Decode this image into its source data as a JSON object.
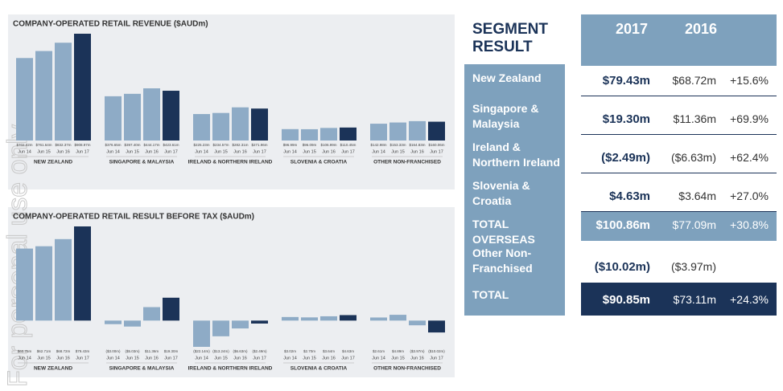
{
  "chart_data": [
    {
      "type": "bar",
      "title": "COMPANY-OPERATED RETAIL REVENUE ($AUDm)",
      "periods": [
        "Jun 14",
        "Jun 15",
        "Jun 16",
        "Jun 17"
      ],
      "colors": [
        "#8eabc6",
        "#8eabc6",
        "#8eabc6",
        "#1b3358"
      ],
      "groups": [
        {
          "name": "NEW ZEALAND",
          "values": [
            702.02,
            761.64,
            832.37,
            908.97
          ],
          "value_labels": [
            "$702.02m",
            "$761.64m",
            "$832.37m",
            "$908.97m"
          ]
        },
        {
          "name": "SINGAPORE & MALAYSIA",
          "values": [
            376.65,
            397.4,
            444.17,
            423.61
          ],
          "value_labels": [
            "$376.65m",
            "$397.40m",
            "$444.17m",
            "$423.61m"
          ]
        },
        {
          "name": "IRELAND & NORTHERN IRELAND",
          "values": [
            225.23,
            234.57,
            282.31,
            271.96
          ],
          "value_labels": [
            "$225.23m",
            "$234.57m",
            "$282.31m",
            "$271.96m"
          ]
        },
        {
          "name": "SLOVENIA & CROATIA",
          "values": [
            96.99,
            96.09,
            106.99,
            110.45
          ],
          "value_labels": [
            "$96.99m",
            "$96.09m",
            "$106.99m",
            "$110.45m"
          ]
        },
        {
          "name": "OTHER NON-FRANCHISED",
          "values": [
            142.98,
            153.33,
            164.83,
            160.06
          ],
          "value_labels": [
            "$142.98m",
            "$153.33m",
            "$164.83m",
            "$160.06m"
          ]
        }
      ]
    },
    {
      "type": "bar",
      "title": "COMPANY-OPERATED RETAIL RESULT BEFORE TAX ($AUDm)",
      "periods": [
        "Jun 14",
        "Jun 15",
        "Jun 16",
        "Jun 17"
      ],
      "colors": [
        "#8eabc6",
        "#8eabc6",
        "#8eabc6",
        "#1b3358"
      ],
      "groups": [
        {
          "name": "NEW ZEALAND",
          "values": [
            60.75,
            62.71,
            68.72,
            79.43
          ],
          "value_labels": [
            "$60.75m",
            "$62.71m",
            "$68.72m",
            "$79.43m"
          ]
        },
        {
          "name": "SINGAPORE & MALAYSIA",
          "values": [
            -3.0,
            -5.03,
            11.36,
            19.3
          ],
          "value_labels": [
            "($3.00m)",
            "($5.03m)",
            "$11.36m",
            "$19.30m"
          ]
        },
        {
          "name": "IRELAND & NORTHERN IRELAND",
          "values": [
            -22.14,
            -13.24,
            -6.63,
            -2.49
          ],
          "value_labels": [
            "($22.14m)",
            "($13.24m)",
            "($6.63m)",
            "($2.49m)"
          ]
        },
        {
          "name": "SLOVENIA & CROATIA",
          "values": [
            3.02,
            2.7,
            3.64,
            4.63
          ],
          "value_labels": [
            "$3.02m",
            "$2.70m",
            "$3.64m",
            "$4.63m"
          ]
        },
        {
          "name": "OTHER NON-FRANCHISED",
          "values": [
            2.61,
            4.89,
            -3.97,
            -10.02
          ],
          "value_labels": [
            "$2.61m",
            "$4.89m",
            "($3.97m)",
            "($10.02m)"
          ]
        }
      ]
    }
  ],
  "table": {
    "title": "SEGMENT RESULT",
    "columns": [
      "2017",
      "2016"
    ],
    "rows": [
      [
        "New Zealand",
        "$79.43m",
        "$68.72m",
        "+15.6%"
      ],
      [
        "Singapore & Malaysia",
        "$19.30m",
        "$11.36m",
        "+69.9%"
      ],
      [
        "Ireland & Northern Ireland",
        "($2.49m)",
        "($6.63m)",
        "+62.4%"
      ],
      [
        "Slovenia & Croatia",
        "$4.63m",
        "$3.64m",
        "+27.0%"
      ],
      [
        "TOTAL OVERSEAS",
        "$100.86m",
        "$77.09m",
        "+30.8%"
      ],
      [
        "Other Non-Franchised",
        "($10.02m)",
        "($3.97m)"
      ],
      [
        "TOTAL",
        "$90.85m",
        "$73.11m",
        "+24.3%"
      ]
    ]
  },
  "watermark": "For personal use only"
}
